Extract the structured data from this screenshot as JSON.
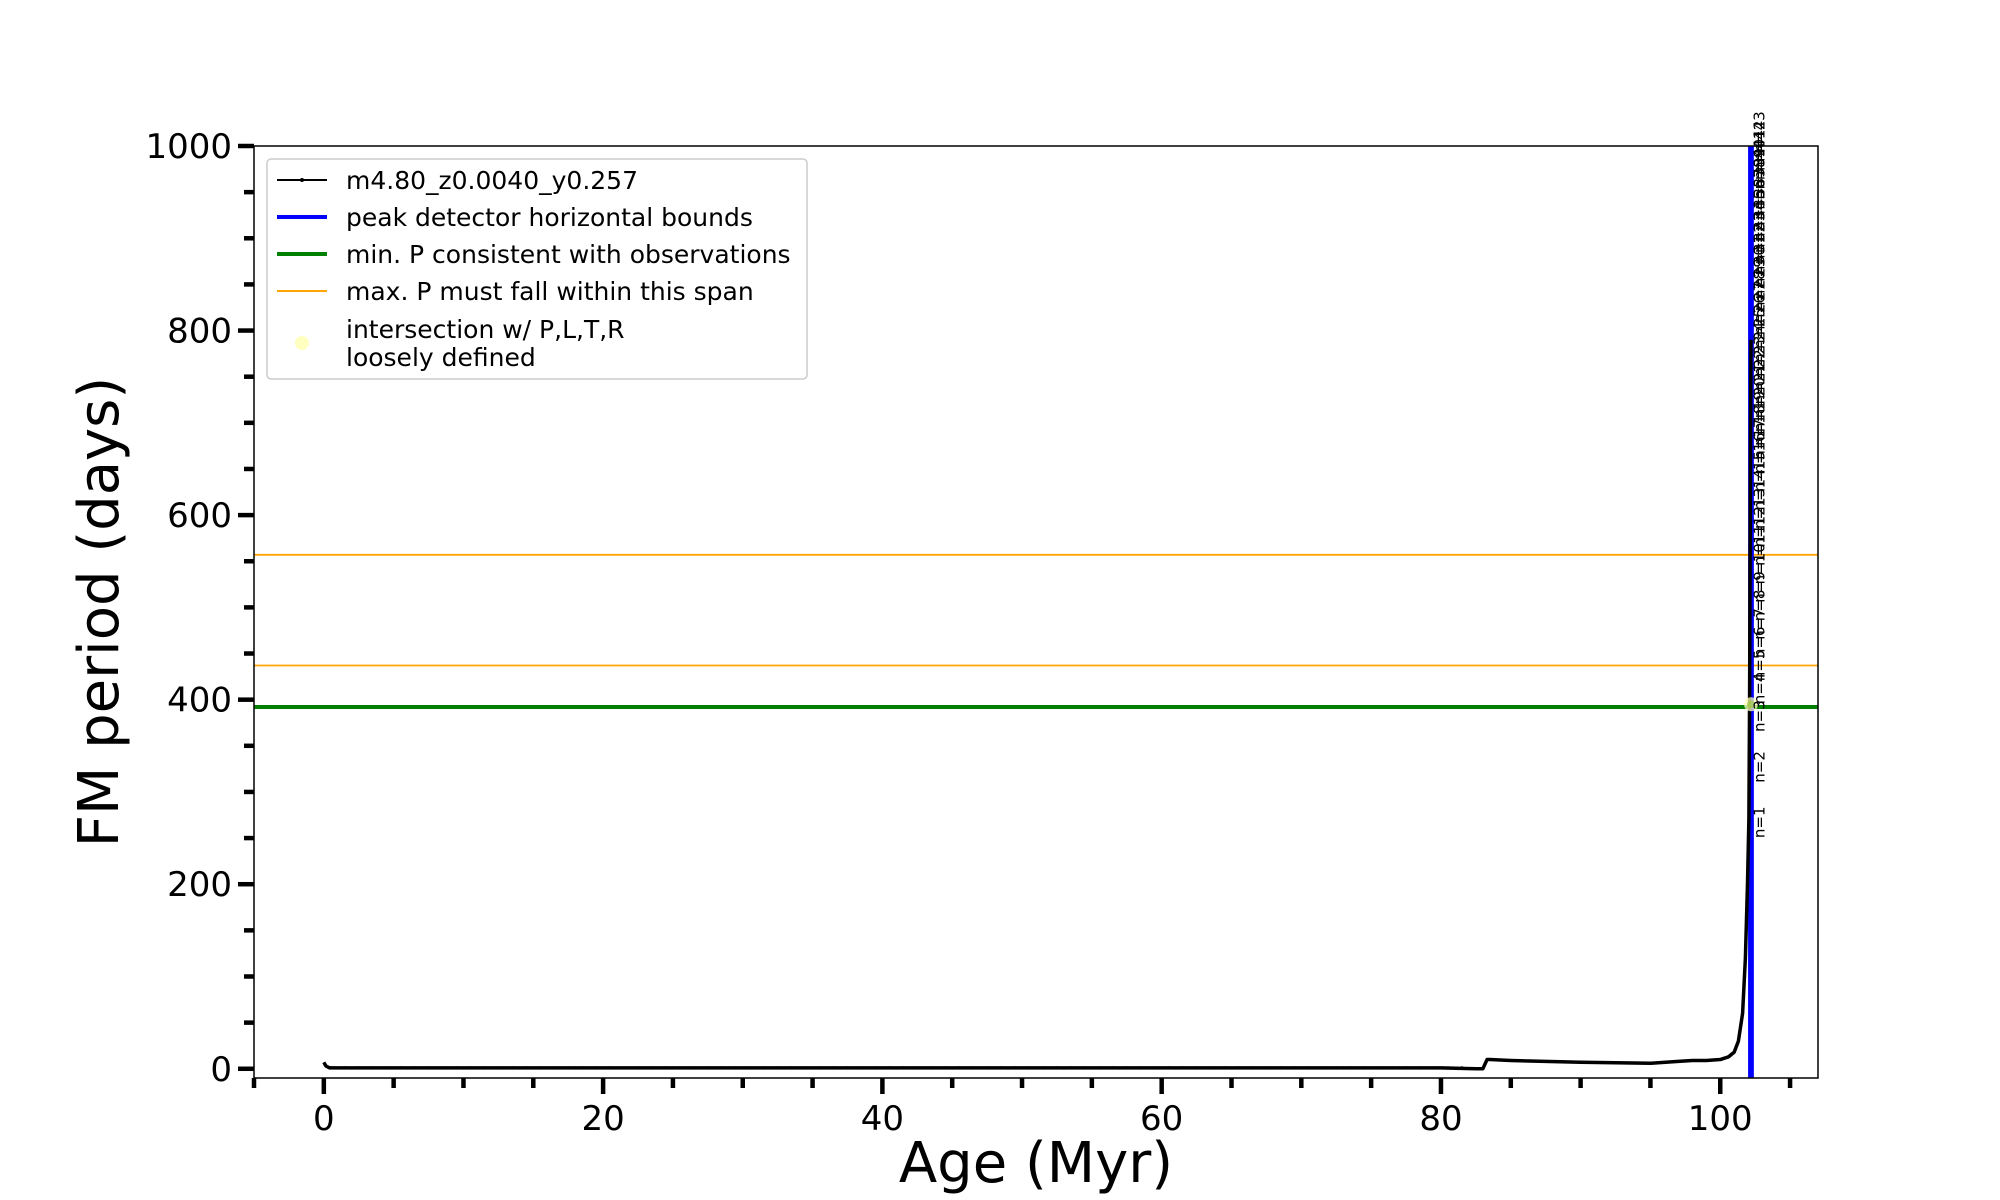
{
  "chart_data": {
    "type": "line",
    "title": "",
    "xlabel": "Age (Myr)",
    "ylabel": "FM period (days)",
    "xlim": [
      -5,
      107
    ],
    "ylim": [
      -10,
      1000
    ],
    "xticks": [
      0,
      20,
      40,
      60,
      80,
      100
    ],
    "xtick_labels": [
      "0",
      "20",
      "40",
      "60",
      "80",
      "100"
    ],
    "xminor_step": 5,
    "yticks": [
      0,
      200,
      400,
      600,
      800,
      1000
    ],
    "ytick_labels": [
      "0",
      "200",
      "400",
      "600",
      "800",
      "1000"
    ],
    "yminor_step": 50,
    "grid": false,
    "legend_position": "upper-left",
    "series": [
      {
        "name": "m4.80_z0.0040_y0.257",
        "color": "#000000",
        "x": [
          0.0,
          0.15,
          0.4,
          1.0,
          5.0,
          20.0,
          40.0,
          60.0,
          80.0,
          82.5,
          83.0,
          83.3,
          83.5,
          85.0,
          90.0,
          95.0,
          97.0,
          98.0,
          99.0,
          100.0,
          100.6,
          101.0,
          101.3,
          101.6,
          101.8,
          101.95,
          102.05,
          102.1,
          102.15,
          102.2
        ],
        "y": [
          7,
          3,
          1,
          1,
          1,
          1,
          1,
          1,
          1,
          0,
          0,
          10,
          10,
          9,
          7,
          6,
          8,
          9,
          9,
          10,
          13,
          18,
          30,
          60,
          120,
          200,
          270,
          400,
          600,
          790
        ]
      }
    ],
    "peak_detector_bounds": {
      "name": "peak detector horizontal bounds",
      "color": "#0000ff",
      "x": [
        102.1,
        102.3
      ]
    },
    "min_period": {
      "name": "min. P consistent with observations",
      "color": "#008000",
      "y": 392
    },
    "max_period_span": {
      "name": "max. P must fall within this span",
      "color": "#ffa500",
      "y": [
        437,
        557
      ]
    },
    "intersection": {
      "name": "intersection w/ P,L,T,R\nloosely defined",
      "color": "#ffffc0",
      "x": 102.2,
      "y": 395
    },
    "peak_annotations": [
      {
        "text": "n=1",
        "x": 102.3,
        "y": 250
      },
      {
        "text": "n=2",
        "x": 102.3,
        "y": 310
      },
      {
        "text": "n=3",
        "x": 102.3,
        "y": 365
      },
      {
        "text": "n=4",
        "x": 102.3,
        "y": 395
      },
      {
        "text": "n=5",
        "x": 102.3,
        "y": 420
      },
      {
        "text": "n=6",
        "x": 102.3,
        "y": 445
      },
      {
        "text": "n=7",
        "x": 102.3,
        "y": 465
      },
      {
        "text": "n=8",
        "x": 102.3,
        "y": 485
      },
      {
        "text": "n=9",
        "x": 102.3,
        "y": 505
      },
      {
        "text": "n=10",
        "x": 102.3,
        "y": 525
      },
      {
        "text": "n=11",
        "x": 102.3,
        "y": 545
      },
      {
        "text": "n=12",
        "x": 102.3,
        "y": 565
      },
      {
        "text": "n=13",
        "x": 102.3,
        "y": 585
      },
      {
        "text": "n=14",
        "x": 102.3,
        "y": 605
      },
      {
        "text": "n=15",
        "x": 102.3,
        "y": 625
      },
      {
        "text": "n=16",
        "x": 102.3,
        "y": 645
      },
      {
        "text": "n=17",
        "x": 102.3,
        "y": 660
      },
      {
        "text": "n=18",
        "x": 102.3,
        "y": 675
      },
      {
        "text": "n=19",
        "x": 102.3,
        "y": 690
      },
      {
        "text": "n=20",
        "x": 102.3,
        "y": 705
      },
      {
        "text": "n=21",
        "x": 102.3,
        "y": 720
      },
      {
        "text": "n=22",
        "x": 102.3,
        "y": 735
      },
      {
        "text": "n=23",
        "x": 102.3,
        "y": 750
      },
      {
        "text": "n=24",
        "x": 102.3,
        "y": 765
      },
      {
        "text": "n=25",
        "x": 102.3,
        "y": 780
      },
      {
        "text": "n=26",
        "x": 102.3,
        "y": 795
      },
      {
        "text": "n=27",
        "x": 102.3,
        "y": 808
      },
      {
        "text": "n=28",
        "x": 102.3,
        "y": 821
      },
      {
        "text": "n=29",
        "x": 102.3,
        "y": 834
      },
      {
        "text": "n=30",
        "x": 102.3,
        "y": 847
      },
      {
        "text": "n=31",
        "x": 102.3,
        "y": 860
      },
      {
        "text": "n=32",
        "x": 102.3,
        "y": 872
      },
      {
        "text": "n=33",
        "x": 102.3,
        "y": 884
      },
      {
        "text": "n=34",
        "x": 102.3,
        "y": 896
      },
      {
        "text": "n=35",
        "x": 102.3,
        "y": 908
      },
      {
        "text": "n=36",
        "x": 102.3,
        "y": 920
      },
      {
        "text": "n=37",
        "x": 102.3,
        "y": 931
      },
      {
        "text": "n=38",
        "x": 102.3,
        "y": 942
      },
      {
        "text": "n=39",
        "x": 102.3,
        "y": 953
      },
      {
        "text": "n=40",
        "x": 102.3,
        "y": 963
      },
      {
        "text": "n=41",
        "x": 102.3,
        "y": 973
      },
      {
        "text": "n=42",
        "x": 102.3,
        "y": 983
      },
      {
        "text": "n=43",
        "x": 102.3,
        "y": 993
      }
    ]
  }
}
